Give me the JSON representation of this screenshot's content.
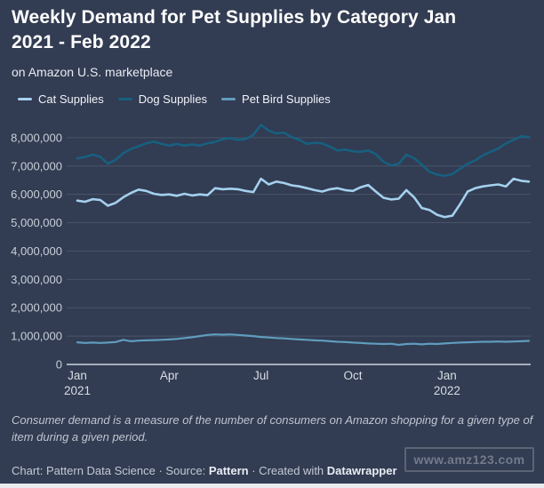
{
  "header": {
    "title": "Weekly Demand for Pet Supplies by Category Jan 2021 - Feb 2022",
    "subtitle": "on Amazon U.S. marketplace"
  },
  "footer": {
    "note": "Consumer demand is a measure of the number of consumers on Amazon shopping for a given type of item during a given period.",
    "credit_prefix": "Chart: Pattern Data Science · Source: ",
    "source_name": "Pattern",
    "credit_middle": " · Created with ",
    "tool_name": "Datawrapper",
    "watermark": "www.amz123.com"
  },
  "colors": {
    "background": "#323c52",
    "gridline": "#47516529",
    "gridline_stroke": "#4a5469",
    "baseline": "#ccd3dd",
    "axis_label": "#c9d0db",
    "title": "#ffffff"
  },
  "chart_data": {
    "type": "line",
    "title": "Weekly Demand for Pet Supplies by Category Jan 2021 - Feb 2022",
    "subtitle": "on Amazon U.S. marketplace",
    "x_unit": "week",
    "x_range": [
      "Jan 2021",
      "Feb 2022"
    ],
    "ylim": [
      0,
      8600000
    ],
    "y_tick_step": 1000000,
    "y_tick_max": 8000000,
    "grid": "horizontal",
    "legend_position": "top",
    "x_axis": {
      "ticks": [
        {
          "label": "Jan",
          "sublabel": "2021",
          "week": 0
        },
        {
          "label": "Apr",
          "week": 12
        },
        {
          "label": "Jul",
          "week": 24
        },
        {
          "label": "Oct",
          "week": 36
        },
        {
          "label": "Jan",
          "sublabel": "2022",
          "week": 48.3
        }
      ]
    },
    "series": [
      {
        "name": "Cat Supplies",
        "color": "#a4d0ee",
        "width": 2.6,
        "values": [
          5780000,
          5740000,
          5830000,
          5800000,
          5600000,
          5700000,
          5900000,
          6050000,
          6170000,
          6120000,
          6020000,
          5980000,
          6000000,
          5950000,
          6020000,
          5960000,
          6000000,
          5970000,
          6220000,
          6180000,
          6200000,
          6180000,
          6120000,
          6080000,
          6550000,
          6350000,
          6450000,
          6400000,
          6320000,
          6280000,
          6220000,
          6150000,
          6100000,
          6180000,
          6220000,
          6150000,
          6120000,
          6250000,
          6330000,
          6100000,
          5880000,
          5820000,
          5850000,
          6150000,
          5900000,
          5520000,
          5450000,
          5280000,
          5200000,
          5250000,
          5650000,
          6100000,
          6220000,
          6280000,
          6320000,
          6350000,
          6280000,
          6550000,
          6480000,
          6450000
        ]
      },
      {
        "name": "Dog Supplies",
        "color": "#176080",
        "width": 2.6,
        "values": [
          7270000,
          7320000,
          7400000,
          7330000,
          7080000,
          7220000,
          7450000,
          7600000,
          7700000,
          7800000,
          7860000,
          7780000,
          7720000,
          7780000,
          7720000,
          7760000,
          7720000,
          7800000,
          7850000,
          7950000,
          7980000,
          7920000,
          7950000,
          8100000,
          8450000,
          8250000,
          8150000,
          8180000,
          8020000,
          7920000,
          7780000,
          7820000,
          7800000,
          7680000,
          7550000,
          7580000,
          7520000,
          7500000,
          7550000,
          7420000,
          7150000,
          7020000,
          7080000,
          7400000,
          7280000,
          7050000,
          6800000,
          6700000,
          6650000,
          6720000,
          6900000,
          7080000,
          7200000,
          7380000,
          7500000,
          7620000,
          7800000,
          7920000,
          8050000,
          8020000
        ]
      },
      {
        "name": "Pet Bird Supplies",
        "color": "#5f9dbe",
        "width": 2.2,
        "values": [
          780000,
          760000,
          770000,
          760000,
          770000,
          790000,
          870000,
          820000,
          840000,
          850000,
          860000,
          870000,
          880000,
          900000,
          930000,
          960000,
          1000000,
          1040000,
          1060000,
          1050000,
          1060000,
          1040000,
          1020000,
          1000000,
          970000,
          950000,
          930000,
          920000,
          900000,
          880000,
          870000,
          850000,
          840000,
          820000,
          800000,
          790000,
          770000,
          760000,
          740000,
          730000,
          720000,
          730000,
          690000,
          720000,
          730000,
          710000,
          730000,
          720000,
          740000,
          760000,
          770000,
          780000,
          790000,
          800000,
          800000,
          810000,
          800000,
          810000,
          820000,
          830000
        ]
      }
    ]
  }
}
